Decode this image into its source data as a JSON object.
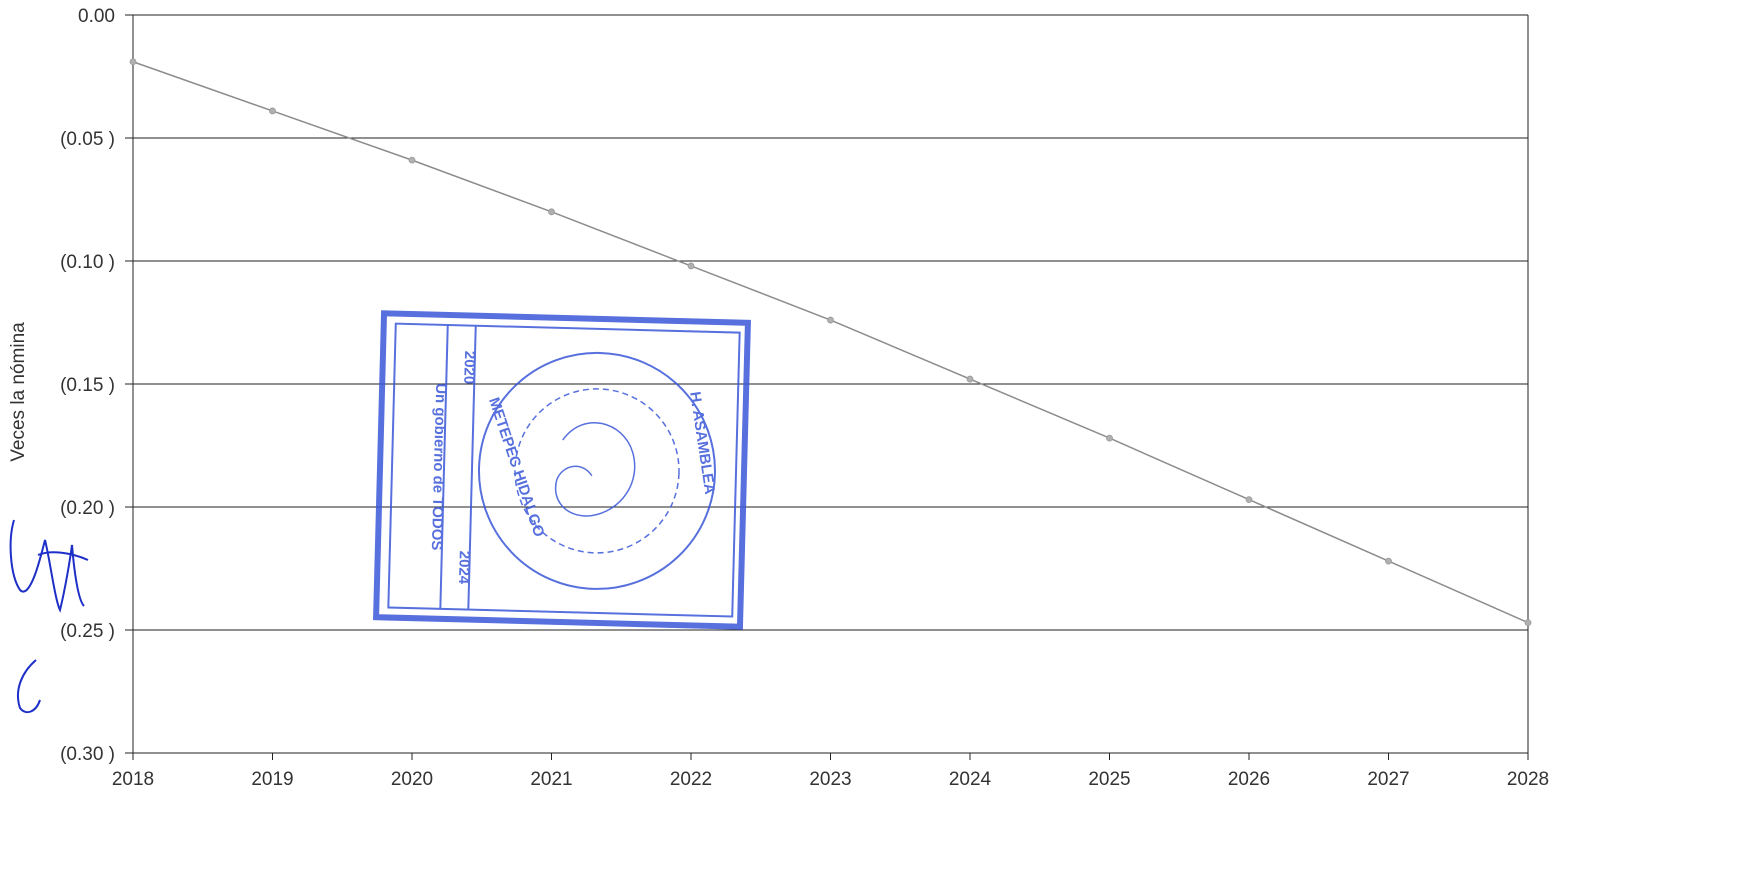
{
  "chart_data": {
    "type": "line",
    "title": "",
    "xlabel": "",
    "ylabel": "Veces la nómina",
    "x": [
      2018,
      2019,
      2020,
      2021,
      2022,
      2023,
      2024,
      2025,
      2026,
      2027,
      2028
    ],
    "x_tick_labels": [
      "2018",
      "2019",
      "2020",
      "2021",
      "2022",
      "2023",
      "2024",
      "2025",
      "2026",
      "2027",
      "2028"
    ],
    "y_ticks": [
      0.0,
      -0.05,
      -0.1,
      -0.15,
      -0.2,
      -0.25,
      -0.3
    ],
    "y_tick_labels": [
      "0.00",
      "(0.05 )",
      "(0.10 )",
      "(0.15 )",
      "(0.20 )",
      "(0.25 )",
      "(0.30 )"
    ],
    "ylim": [
      -0.3,
      0.0
    ],
    "xlim": [
      2018,
      2028
    ],
    "grid": "horizontal",
    "legend": "none",
    "series": [
      {
        "values": [
          -0.019,
          -0.039,
          -0.059,
          -0.08,
          -0.102,
          -0.124,
          -0.148,
          -0.172,
          -0.197,
          -0.222,
          -0.247
        ]
      }
    ],
    "colors": {
      "line": "#8c8c8c",
      "grid": "#222222",
      "stamp": "#3a58d8",
      "signature": "#1e2fc8"
    }
  },
  "stamp": {
    "text_left": "Un gobierno de TODOS",
    "text_years_top": "2020",
    "text_years_bottom": "2024",
    "text_arc_left": "METEPEC HIDALGO",
    "text_arc_right": "H. ASAMBLEA"
  }
}
